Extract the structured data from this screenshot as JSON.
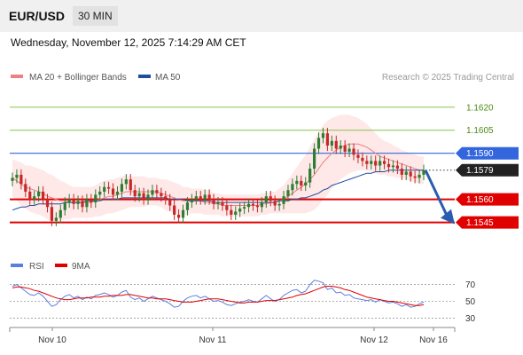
{
  "header": {
    "symbol": "EUR/USD",
    "interval": "30 MIN"
  },
  "datetime": "Wednesday, November 12, 2025 7:14:29 AM CET",
  "credit": "Research © 2025 Trading Central",
  "legend": {
    "ma20_label": "MA 20 + Bollinger Bands",
    "ma50_label": "MA 50",
    "rsi_label": "RSI",
    "ma9_label": "9MA"
  },
  "colors": {
    "ma20": "#f08080",
    "ma50": "#1f4e9c",
    "resistance": "#8bc34a",
    "support": "#e00000",
    "pivot": "#3366dd",
    "up": "#2e7d32",
    "down": "#c62828",
    "rsi": "#5b7fde",
    "rsi_ma": "#e00000",
    "band": "#fde0e0",
    "arrow": "#2a5db0"
  },
  "chart_data": [
    {
      "type": "candlestick",
      "title": "EUR/USD",
      "ylim": [
        1.1528,
        1.1632
      ],
      "x_ticks": [
        "Nov 10",
        "Nov 11",
        "Nov 12",
        "Nov 16"
      ],
      "levels": [
        {
          "value": 1.162,
          "label": "1.1620",
          "kind": "resistance"
        },
        {
          "value": 1.1605,
          "label": "1.1605",
          "kind": "resistance"
        },
        {
          "value": 1.159,
          "label": "1.1590",
          "kind": "pivot"
        },
        {
          "value": 1.1579,
          "label": "1.1579",
          "kind": "last"
        },
        {
          "value": 1.156,
          "label": "1.1560",
          "kind": "support"
        },
        {
          "value": 1.1545,
          "label": "1.1545",
          "kind": "support"
        }
      ],
      "close": [
        1.1574,
        1.1576,
        1.157,
        1.1565,
        1.156,
        1.1562,
        1.1565,
        1.156,
        1.1555,
        1.1546,
        1.1548,
        1.1553,
        1.1558,
        1.156,
        1.1557,
        1.1559,
        1.1555,
        1.156,
        1.1558,
        1.1563,
        1.1565,
        1.1568,
        1.1567,
        1.1563,
        1.1565,
        1.157,
        1.1573,
        1.1566,
        1.1562,
        1.1564,
        1.156,
        1.1563,
        1.1566,
        1.1564,
        1.1562,
        1.156,
        1.1556,
        1.155,
        1.1548,
        1.1553,
        1.1558,
        1.156,
        1.1562,
        1.156,
        1.1563,
        1.156,
        1.1557,
        1.1558,
        1.1556,
        1.1553,
        1.155,
        1.1552,
        1.1554,
        1.1555,
        1.1557,
        1.1556,
        1.1555,
        1.1558,
        1.1562,
        1.1559,
        1.1556,
        1.1557,
        1.1562,
        1.1566,
        1.157,
        1.1572,
        1.1569,
        1.1571,
        1.158,
        1.1593,
        1.16,
        1.1603,
        1.1595,
        1.1598,
        1.1593,
        1.1595,
        1.1591,
        1.1593,
        1.1589,
        1.1587,
        1.1585,
        1.1583,
        1.1585,
        1.1582,
        1.1585,
        1.1583,
        1.1581,
        1.1582,
        1.158,
        1.1576,
        1.1578,
        1.1575,
        1.1574,
        1.1576,
        1.1579
      ],
      "ma20": [
        1.1574,
        1.1572,
        1.157,
        1.1568,
        1.1567,
        1.1566,
        1.1565,
        1.1564,
        1.1562,
        1.1561,
        1.156,
        1.1559,
        1.1559,
        1.1558,
        1.1558,
        1.1558,
        1.1558,
        1.1558,
        1.1558,
        1.1559,
        1.156,
        1.1561,
        1.1562,
        1.1562,
        1.1563,
        1.1564,
        1.1565,
        1.1565,
        1.1565,
        1.1565,
        1.1565,
        1.1565,
        1.1565,
        1.1565,
        1.1564,
        1.1563,
        1.1562,
        1.1561,
        1.156,
        1.1559,
        1.1559,
        1.1559,
        1.1559,
        1.1559,
        1.1558,
        1.1558,
        1.1557,
        1.1557,
        1.1556,
        1.1556,
        1.1556,
        1.1556,
        1.1556,
        1.1556,
        1.1556,
        1.1556,
        1.1556,
        1.1557,
        1.1557,
        1.1558,
        1.1558,
        1.1559,
        1.156,
        1.1562,
        1.1564,
        1.1566,
        1.1568,
        1.157,
        1.1573,
        1.1576,
        1.158,
        1.1584,
        1.1587,
        1.159,
        1.1592,
        1.1594,
        1.1595,
        1.1596,
        1.1596,
        1.1596,
        1.1595,
        1.1594,
        1.1592,
        1.159,
        1.1588,
        1.1587,
        1.1586,
        1.1585,
        1.1584,
        1.1583,
        1.1582,
        1.1581,
        1.158,
        1.1579,
        1.1579
      ],
      "ma50": [
        1.1553,
        1.1554,
        1.1555,
        1.1555,
        1.1556,
        1.1556,
        1.1557,
        1.1557,
        1.1557,
        1.1557,
        1.1557,
        1.1557,
        1.1558,
        1.1558,
        1.1558,
        1.1558,
        1.1558,
        1.1559,
        1.1559,
        1.1559,
        1.1559,
        1.156,
        1.156,
        1.156,
        1.156,
        1.1561,
        1.1561,
        1.1561,
        1.1561,
        1.1561,
        1.1561,
        1.1561,
        1.1561,
        1.1561,
        1.1561,
        1.1561,
        1.156,
        1.156,
        1.156,
        1.156,
        1.1559,
        1.1559,
        1.1559,
        1.1559,
        1.1559,
        1.1559,
        1.1558,
        1.1558,
        1.1558,
        1.1558,
        1.1558,
        1.1558,
        1.1558,
        1.1558,
        1.1558,
        1.1558,
        1.1558,
        1.1558,
        1.1558,
        1.1558,
        1.1558,
        1.1559,
        1.1559,
        1.1559,
        1.156,
        1.156,
        1.1561,
        1.1561,
        1.1562,
        1.1563,
        1.1564,
        1.1566,
        1.1567,
        1.1569,
        1.157,
        1.1571,
        1.1572,
        1.1573,
        1.1574,
        1.1575,
        1.1576,
        1.1577,
        1.1577,
        1.1578,
        1.1578,
        1.1578,
        1.1579,
        1.1579,
        1.1579,
        1.1579,
        1.1579,
        1.1579,
        1.1579,
        1.1579,
        1.1579
      ],
      "bb_width": [
        0.0012,
        0.0013,
        0.0014,
        0.0014,
        0.0015,
        0.0015,
        0.0015,
        0.0015,
        0.0015,
        0.0015,
        0.0014,
        0.0013,
        0.0012,
        0.0011,
        0.001,
        0.001,
        0.001,
        0.001,
        0.001,
        0.001,
        0.0011,
        0.0011,
        0.0011,
        0.0011,
        0.0011,
        0.0011,
        0.0011,
        0.001,
        0.001,
        0.001,
        0.001,
        0.0009,
        0.0009,
        0.0009,
        0.0009,
        0.001,
        0.001,
        0.001,
        0.001,
        0.0009,
        0.0009,
        0.0008,
        0.0008,
        0.0008,
        0.0008,
        0.0008,
        0.0007,
        0.0007,
        0.0007,
        0.0007,
        0.0007,
        0.0007,
        0.0007,
        0.0007,
        0.0007,
        0.0007,
        0.0007,
        0.0007,
        0.0007,
        0.0007,
        0.0007,
        0.0008,
        0.0009,
        0.0011,
        0.0013,
        0.0015,
        0.0017,
        0.0019,
        0.0021,
        0.0023,
        0.0024,
        0.0024,
        0.0024,
        0.0023,
        0.0022,
        0.0021,
        0.002,
        0.0019,
        0.0018,
        0.0017,
        0.0016,
        0.0015,
        0.0014,
        0.0013,
        0.0012,
        0.0011,
        0.0011,
        0.001,
        0.001,
        0.0009,
        0.0009,
        0.0009,
        0.0009,
        0.0009,
        0.0009
      ],
      "arrow": {
        "from": 1.1579,
        "to": 1.1545
      }
    },
    {
      "type": "line",
      "title": "RSI",
      "ylim": [
        22,
        78
      ],
      "y_ticks": [
        70,
        50,
        30
      ],
      "series": [
        {
          "name": "RSI",
          "values": [
            68,
            70,
            66,
            62,
            58,
            57,
            60,
            56,
            50,
            44,
            46,
            52,
            56,
            58,
            54,
            56,
            52,
            55,
            53,
            57,
            58,
            60,
            58,
            55,
            57,
            61,
            63,
            55,
            52,
            54,
            50,
            53,
            56,
            54,
            52,
            50,
            47,
            43,
            44,
            50,
            54,
            56,
            57,
            54,
            56,
            53,
            50,
            51,
            49,
            46,
            45,
            47,
            49,
            50,
            52,
            50,
            49,
            53,
            57,
            53,
            50,
            52,
            57,
            60,
            63,
            64,
            60,
            62,
            70,
            75,
            74,
            72,
            64,
            66,
            60,
            61,
            57,
            58,
            54,
            53,
            52,
            51,
            52,
            49,
            52,
            50,
            48,
            49,
            47,
            44,
            46,
            43,
            44,
            47,
            49
          ]
        },
        {
          "name": "9MA",
          "values": [
            66,
            67,
            67,
            66,
            65,
            63,
            62,
            60,
            58,
            56,
            54,
            53,
            52,
            52,
            53,
            54,
            54,
            54,
            55,
            55,
            55,
            56,
            56,
            57,
            57,
            57,
            58,
            58,
            57,
            56,
            55,
            54,
            54,
            53,
            53,
            53,
            52,
            51,
            50,
            49,
            49,
            49,
            50,
            51,
            52,
            53,
            53,
            53,
            52,
            51,
            50,
            49,
            48,
            48,
            49,
            49,
            49,
            50,
            51,
            51,
            51,
            52,
            53,
            54,
            55,
            57,
            58,
            59,
            61,
            63,
            65,
            67,
            68,
            68,
            67,
            66,
            64,
            63,
            61,
            59,
            57,
            55,
            54,
            53,
            52,
            51,
            50,
            50,
            49,
            48,
            47,
            46,
            45,
            45,
            46
          ]
        }
      ]
    }
  ]
}
